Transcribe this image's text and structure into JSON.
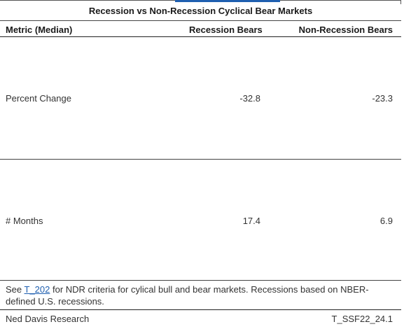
{
  "table": {
    "caption": "Recession vs Non-Recession Cyclical Bear Markets",
    "columns": [
      "Metric (Median)",
      "Recession Bears",
      "Non-Recession Bears"
    ],
    "rows": [
      {
        "metric": "Percent Change",
        "recession": "-32.8",
        "non_recession": "-23.3"
      },
      {
        "metric": "# Months",
        "recession": "17.4",
        "non_recession": "6.9"
      }
    ]
  },
  "note": {
    "prefix": "See ",
    "link_text": "T_202",
    "suffix": " for NDR criteria for cylical bull and bear markets. Recessions based on NBER-defined U.S. recessions."
  },
  "footer": {
    "source": "Ned Davis Research",
    "code": "T_SSF22_24.1"
  },
  "colors": {
    "link": "#1f5fb0",
    "rule": "#444444"
  }
}
